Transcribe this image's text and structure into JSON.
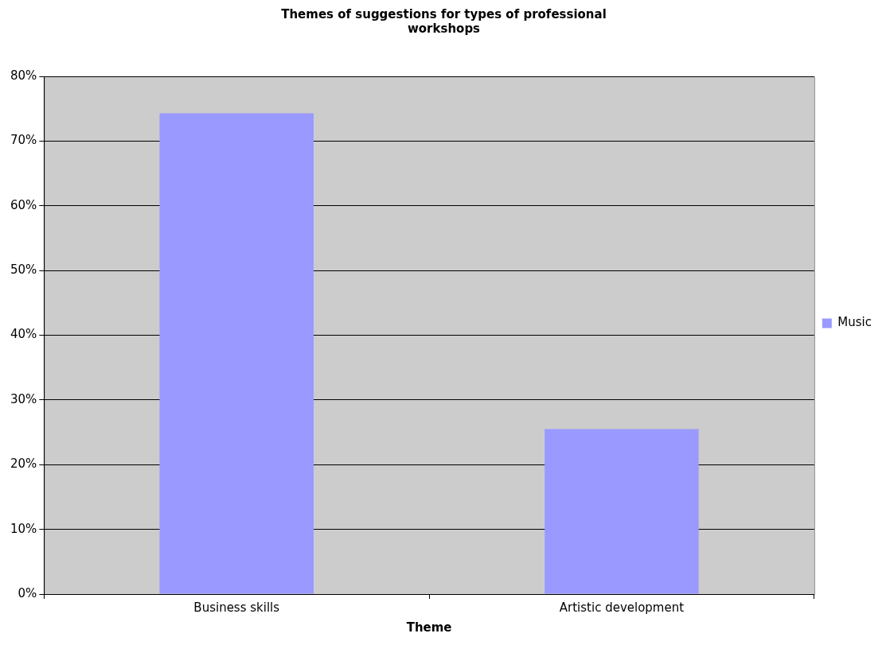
{
  "chart_data": {
    "type": "bar",
    "title": "Themes of suggestions for types of professional workshops",
    "xlabel": "Theme",
    "categories": [
      "Business skills",
      "Artistic development"
    ],
    "series": [
      {
        "name": "Music",
        "color": "#9999ff",
        "values": [
          74.3,
          25.5
        ]
      }
    ],
    "ylim": [
      0,
      80
    ],
    "yticks": [
      {
        "value": 0,
        "label": "0%"
      },
      {
        "value": 10,
        "label": "10%"
      },
      {
        "value": 20,
        "label": "20%"
      },
      {
        "value": 30,
        "label": "30%"
      },
      {
        "value": 40,
        "label": "40%"
      },
      {
        "value": 50,
        "label": "50%"
      },
      {
        "value": 60,
        "label": "60%"
      },
      {
        "value": 70,
        "label": "70%"
      },
      {
        "value": 80,
        "label": "80%"
      }
    ],
    "grid": "y",
    "legend": "right"
  }
}
